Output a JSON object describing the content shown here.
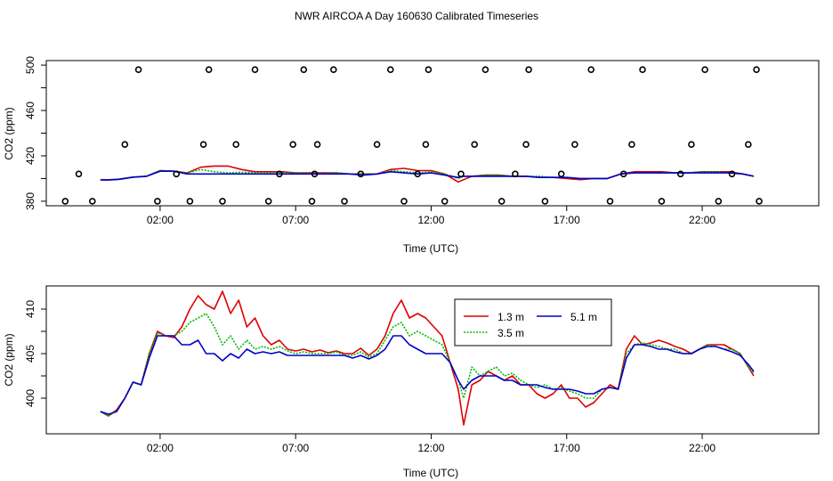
{
  "title": "NWR AIRCOA A  Day 160630  Calibrated Timeseries",
  "colors": {
    "s1": "#dd0000",
    "s2": "#00bb00",
    "s3": "#0000cc",
    "points": "#000000"
  },
  "chart_data": [
    {
      "type": "line",
      "panel": "top",
      "xlabel": "Time (UTC)",
      "ylabel": "CO2 (ppm)",
      "xlim": [
        -2.2,
        26.3
      ],
      "ylim": [
        376,
        504
      ],
      "x_ticks": [
        2,
        7,
        12,
        17,
        22
      ],
      "x_tick_labels": [
        "02:00",
        "07:00",
        "12:00",
        "17:00",
        "22:00"
      ],
      "y_ticks": [
        380,
        420,
        460,
        500
      ],
      "y_tick_labels": [
        "380",
        "420",
        "460",
        "500"
      ],
      "grid": false,
      "x": [
        -0.2,
        0.1,
        0.5,
        1.0,
        1.5,
        2.0,
        2.5,
        3.0,
        3.5,
        4.0,
        4.5,
        5.0,
        5.5,
        6.0,
        6.5,
        7.0,
        7.5,
        8.0,
        8.5,
        9.0,
        9.5,
        10.0,
        10.5,
        11.0,
        11.5,
        12.0,
        12.5,
        13.0,
        13.2,
        13.5,
        14.0,
        14.5,
        15.0,
        15.5,
        16.0,
        16.5,
        17.0,
        17.5,
        18.0,
        18.5,
        19.0,
        19.5,
        20.0,
        20.5,
        21.0,
        21.5,
        22.0,
        22.5,
        23.0,
        23.5,
        23.9
      ],
      "series": [
        {
          "values": [
            399.0,
            398.9,
            399.5,
            401.3,
            402.0,
            407.0,
            406.5,
            405.0,
            410.0,
            411.0,
            411.0,
            408.0,
            406.0,
            406.0,
            406.0,
            405.0,
            405.0,
            405.0,
            405.0,
            404.0,
            404.0,
            404.0,
            408.0,
            409.0,
            407.0,
            407.0,
            404.0,
            397.0,
            399.0,
            402.0,
            403.0,
            403.0,
            402.0,
            402.0,
            401.0,
            401.0,
            400.0,
            399.0,
            400.0,
            400.0,
            404.0,
            406.0,
            406.0,
            406.0,
            405.0,
            405.0,
            406.0,
            406.0,
            406.0,
            404.0,
            402.0
          ]
        },
        {
          "values": [
            398.8,
            398.7,
            399.4,
            401.3,
            402.0,
            407.0,
            406.5,
            405.0,
            408.0,
            406.0,
            405.0,
            405.5,
            405.0,
            405.0,
            405.0,
            405.0,
            404.5,
            404.5,
            405.0,
            404.0,
            404.0,
            404.0,
            407.0,
            406.0,
            405.0,
            406.0,
            404.0,
            400.0,
            402.0,
            402.0,
            403.0,
            403.0,
            402.0,
            402.0,
            402.0,
            401.0,
            401.0,
            400.0,
            400.0,
            400.0,
            404.0,
            405.0,
            405.0,
            405.0,
            405.0,
            405.0,
            406.0,
            406.0,
            405.0,
            404.0,
            402.0
          ]
        },
        {
          "values": [
            398.8,
            398.7,
            399.3,
            401.2,
            402.0,
            406.5,
            406.5,
            404.0,
            404.0,
            404.0,
            404.0,
            404.0,
            404.0,
            404.0,
            404.0,
            404.0,
            404.0,
            404.0,
            404.0,
            404.0,
            403.0,
            404.0,
            406.0,
            405.0,
            404.0,
            405.0,
            403.0,
            401.0,
            402.0,
            402.0,
            402.0,
            402.0,
            402.0,
            402.0,
            401.0,
            401.0,
            401.0,
            400.0,
            400.0,
            400.0,
            404.0,
            405.0,
            405.0,
            405.0,
            405.0,
            405.0,
            405.0,
            405.0,
            405.0,
            404.0,
            402.0
          ]
        }
      ],
      "points": {
        "x": [
          -1.5,
          -1.0,
          -0.5,
          0.7,
          1.2,
          1.9,
          2.6,
          3.1,
          3.6,
          3.8,
          4.3,
          4.8,
          5.5,
          6.0,
          6.4,
          6.9,
          7.3,
          7.6,
          7.7,
          7.8,
          8.4,
          8.8,
          9.4,
          10.0,
          10.5,
          11.0,
          11.5,
          11.8,
          11.9,
          12.5,
          13.1,
          13.6,
          14.0,
          14.6,
          15.1,
          15.5,
          15.6,
          16.2,
          16.8,
          17.3,
          17.9,
          18.6,
          19.1,
          19.4,
          19.8,
          20.5,
          21.2,
          21.6,
          22.1,
          22.6,
          23.1,
          23.7,
          24.0,
          24.1
        ],
        "y": [
          380,
          404,
          380,
          430,
          496,
          380,
          404,
          380,
          430,
          496,
          380,
          430,
          496,
          380,
          404,
          430,
          496,
          380,
          404,
          430,
          496,
          380,
          404,
          430,
          496,
          380,
          404,
          430,
          496,
          380,
          404,
          430,
          496,
          380,
          404,
          430,
          496,
          380,
          404,
          430,
          496,
          380,
          404,
          430,
          496,
          380,
          404,
          430,
          496,
          380,
          404,
          430,
          496,
          380
        ]
      }
    },
    {
      "type": "line",
      "panel": "bottom",
      "xlabel": "Time (UTC)",
      "ylabel": "CO2 (ppm)",
      "xlim": [
        -2.2,
        26.3
      ],
      "ylim": [
        396,
        412.6
      ],
      "x_ticks": [
        2,
        7,
        12,
        17,
        22
      ],
      "x_tick_labels": [
        "02:00",
        "07:00",
        "12:00",
        "17:00",
        "22:00"
      ],
      "y_ticks": [
        400,
        405,
        410
      ],
      "y_tick_labels": [
        "400",
        "405",
        "410"
      ],
      "grid": false,
      "legend_position": "top-right",
      "x": [
        -0.2,
        0.1,
        0.4,
        0.7,
        1.0,
        1.3,
        1.6,
        1.9,
        2.2,
        2.5,
        2.8,
        3.1,
        3.4,
        3.7,
        4.0,
        4.3,
        4.6,
        4.9,
        5.2,
        5.5,
        5.8,
        6.1,
        6.4,
        6.7,
        7.0,
        7.3,
        7.6,
        7.9,
        8.2,
        8.5,
        8.8,
        9.1,
        9.4,
        9.7,
        10.0,
        10.3,
        10.6,
        10.9,
        11.2,
        11.5,
        11.8,
        12.1,
        12.4,
        12.7,
        13.0,
        13.2,
        13.5,
        13.8,
        14.1,
        14.4,
        14.7,
        15.0,
        15.3,
        15.6,
        15.9,
        16.2,
        16.5,
        16.8,
        17.1,
        17.4,
        17.7,
        18.0,
        18.3,
        18.6,
        18.9,
        19.2,
        19.5,
        19.8,
        20.1,
        20.4,
        20.7,
        21.0,
        21.3,
        21.6,
        21.9,
        22.2,
        22.5,
        22.8,
        23.1,
        23.4,
        23.7,
        23.9
      ],
      "series": [
        {
          "name": "1.3 m",
          "values": [
            398.5,
            398.0,
            398.7,
            400.0,
            401.8,
            401.5,
            405.0,
            407.5,
            407.0,
            406.8,
            408.0,
            410.0,
            411.5,
            410.5,
            410.0,
            412.0,
            409.5,
            411.0,
            408.0,
            409.0,
            407.0,
            406.0,
            406.5,
            405.5,
            405.3,
            405.5,
            405.2,
            405.4,
            405.1,
            405.3,
            405.0,
            405.0,
            405.6,
            404.8,
            405.5,
            407.0,
            409.5,
            411.0,
            409.0,
            409.5,
            409.0,
            408.0,
            407.0,
            404.0,
            401.0,
            397.0,
            401.5,
            402.0,
            403.0,
            402.5,
            402.0,
            402.5,
            401.5,
            401.5,
            400.5,
            400.0,
            400.5,
            401.5,
            400.0,
            400.0,
            399.0,
            399.5,
            400.5,
            401.5,
            401.0,
            405.5,
            407.0,
            406.0,
            406.2,
            406.5,
            406.2,
            405.8,
            405.5,
            405.0,
            405.5,
            406.0,
            406.0,
            406.0,
            405.5,
            405.0,
            403.5,
            402.5
          ]
        },
        {
          "name": "3.5 m",
          "values": [
            398.5,
            398.0,
            398.6,
            400.0,
            401.8,
            401.5,
            405.0,
            407.3,
            407.0,
            407.0,
            407.5,
            408.5,
            409.0,
            409.5,
            408.0,
            406.0,
            407.0,
            405.5,
            406.5,
            405.5,
            405.8,
            405.5,
            405.8,
            405.3,
            405.0,
            405.2,
            405.0,
            405.0,
            405.0,
            405.2,
            404.8,
            404.8,
            405.2,
            404.6,
            405.0,
            406.5,
            408.0,
            408.5,
            407.0,
            407.5,
            407.0,
            406.5,
            406.0,
            404.0,
            402.0,
            400.0,
            403.5,
            402.5,
            403.0,
            403.5,
            402.5,
            402.8,
            402.0,
            401.5,
            401.2,
            401.5,
            401.0,
            401.2,
            400.8,
            400.5,
            400.0,
            400.0,
            401.0,
            401.2,
            401.0,
            405.0,
            406.0,
            406.2,
            406.0,
            405.8,
            405.5,
            405.5,
            405.0,
            405.0,
            405.5,
            406.0,
            405.8,
            405.5,
            405.5,
            405.0,
            403.5,
            402.8
          ]
        },
        {
          "name": "5.1 m",
          "values": [
            398.5,
            398.2,
            398.5,
            400.0,
            401.8,
            401.5,
            404.5,
            407.0,
            407.0,
            407.0,
            406.0,
            406.0,
            406.5,
            405.0,
            405.0,
            404.2,
            405.0,
            404.5,
            405.5,
            405.0,
            405.2,
            405.0,
            405.2,
            404.8,
            404.8,
            404.8,
            404.8,
            404.8,
            404.8,
            404.8,
            404.8,
            404.5,
            404.8,
            404.4,
            404.8,
            405.5,
            407.0,
            407.0,
            406.0,
            405.5,
            405.0,
            405.0,
            405.0,
            404.0,
            402.0,
            401.0,
            402.0,
            402.5,
            402.5,
            402.5,
            402.0,
            402.0,
            401.5,
            401.5,
            401.5,
            401.2,
            401.0,
            401.0,
            401.0,
            400.8,
            400.5,
            400.5,
            401.0,
            401.2,
            401.0,
            404.5,
            406.0,
            406.0,
            405.8,
            405.5,
            405.5,
            405.2,
            405.0,
            405.0,
            405.5,
            405.8,
            405.8,
            405.5,
            405.2,
            404.8,
            403.8,
            403.0
          ]
        }
      ]
    }
  ]
}
